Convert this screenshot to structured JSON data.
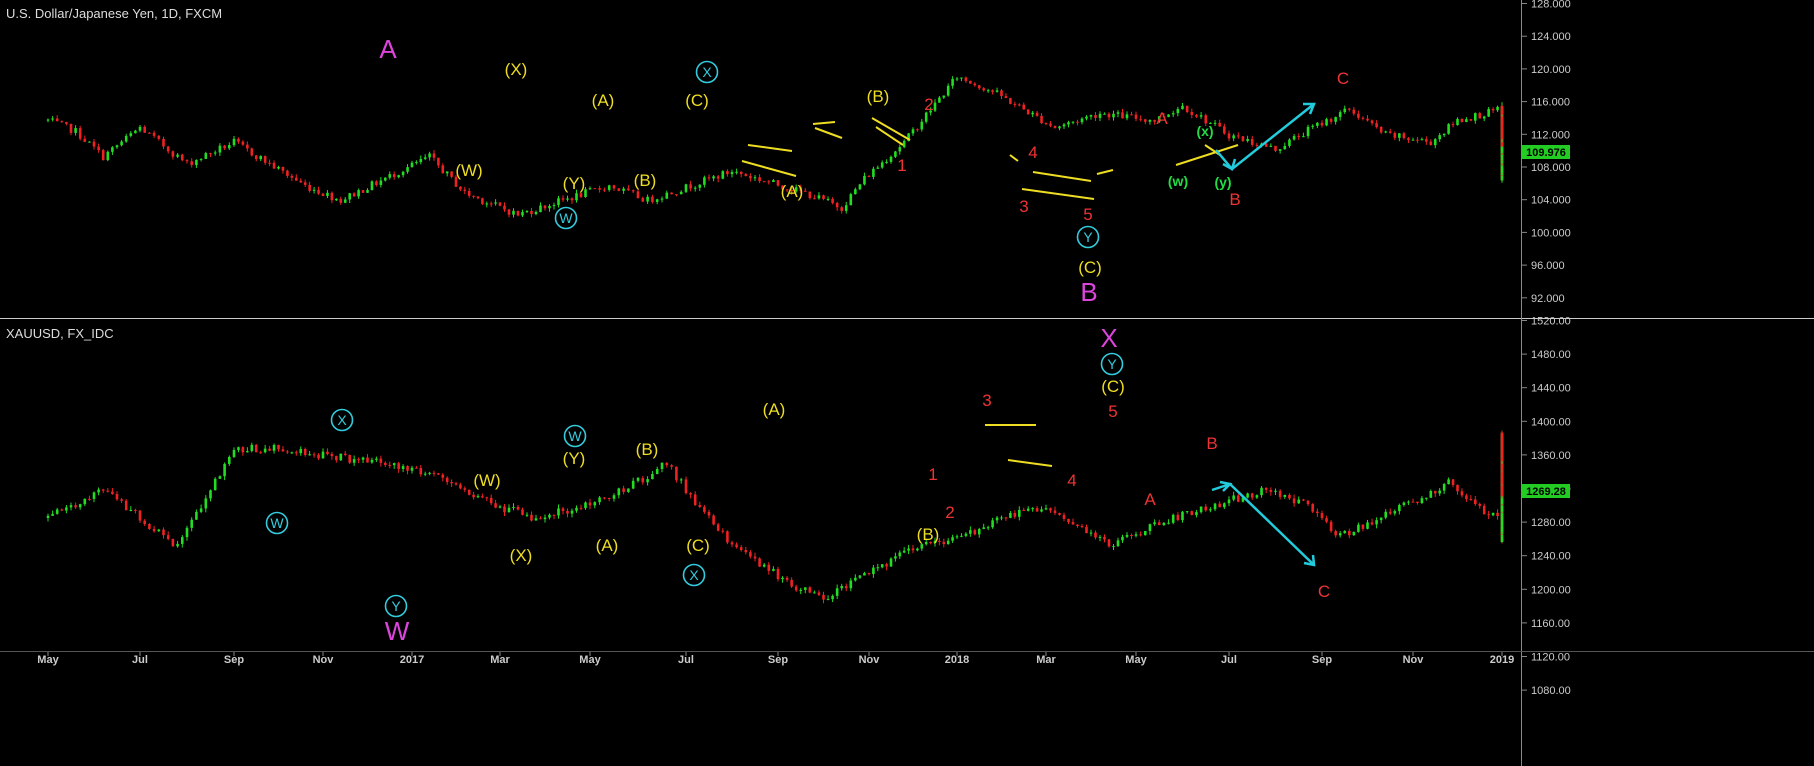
{
  "chart_data": [
    {
      "type": "candlestick",
      "symbol": "U.S. Dollar/Japanese Yen, 1D, FXCM",
      "y_ticks": [
        "128.000",
        "124.000",
        "120.000",
        "116.000",
        "112.000",
        "108.000",
        "104.000",
        "100.000",
        "96.000",
        "92.000"
      ],
      "ylim": [
        88,
        129
      ],
      "last_price": "109.976",
      "colors": {
        "up": "#22dd22",
        "down": "#ee2222",
        "price_tag": "#22cc22"
      },
      "price_path": [
        [
          0,
          113
        ],
        [
          0.3,
          111.5
        ],
        [
          0.6,
          108
        ],
        [
          1.0,
          112
        ],
        [
          1.5,
          107
        ],
        [
          2.0,
          110
        ],
        [
          2.8,
          104
        ],
        [
          3.2,
          102
        ],
        [
          4.2,
          108
        ],
        [
          4.6,
          103
        ],
        [
          5.2,
          100
        ],
        [
          6.2,
          104
        ],
        [
          6.6,
          102
        ],
        [
          7.5,
          106
        ],
        [
          8.3,
          103
        ],
        [
          8.7,
          101
        ],
        [
          8.95,
          105
        ],
        [
          9.4,
          110
        ],
        [
          10.0,
          119
        ],
        [
          10.4,
          117
        ],
        [
          11.1,
          112
        ],
        [
          11.6,
          114
        ],
        [
          12.2,
          113
        ],
        [
          12.5,
          115
        ],
        [
          13.0,
          111
        ],
        [
          13.5,
          109
        ],
        [
          13.9,
          112
        ],
        [
          14.3,
          114.5
        ],
        [
          14.7,
          111
        ],
        [
          15.2,
          110
        ],
        [
          15.5,
          113
        ],
        [
          16.0,
          114.5
        ],
        [
          16.5,
          112
        ],
        [
          17.0,
          111
        ],
        [
          17.4,
          109
        ],
        [
          17.8,
          108
        ],
        [
          18.5,
          111
        ],
        [
          19.0,
          113
        ],
        [
          19.4,
          113
        ],
        [
          20.0,
          114.5
        ],
        [
          20.5,
          112
        ],
        [
          20.9,
          111
        ],
        [
          21.2,
          113
        ],
        [
          21.7,
          113.5
        ],
        [
          22.1,
          112
        ],
        [
          22.4,
          110
        ],
        [
          22.8,
          107
        ],
        [
          23.2,
          105
        ],
        [
          23.7,
          106
        ],
        [
          24.3,
          106
        ],
        [
          24.6,
          108
        ],
        [
          25.2,
          109
        ],
        [
          25.6,
          110.5
        ],
        [
          26.0,
          109
        ],
        [
          26.5,
          109
        ],
        [
          27.0,
          110
        ]
      ]
    },
    {
      "type": "candlestick",
      "symbol": "XAUUSD, FX_IDC",
      "y_ticks": [
        "1520.00",
        "1480.00",
        "1440.00",
        "1400.00",
        "1360.00",
        "1320.00",
        "1280.00",
        "1240.00",
        "1200.00",
        "1160.00",
        "1120.00",
        "1080.00"
      ],
      "ylim": [
        1050,
        1522
      ],
      "last_price": "1269.28",
      "colors": {
        "up": "#22dd22",
        "down": "#ee2222",
        "price_tag": "#22cc22"
      },
      "price_path": [
        [
          0,
          1240
        ],
        [
          0.6,
          1280
        ],
        [
          1.1,
          1230
        ],
        [
          1.4,
          1200
        ],
        [
          2.0,
          1340
        ],
        [
          2.5,
          1340
        ],
        [
          3.0,
          1330
        ],
        [
          3.6,
          1320
        ],
        [
          4.3,
          1300
        ],
        [
          4.9,
          1260
        ],
        [
          5.4,
          1240
        ],
        [
          6.0,
          1260
        ],
        [
          6.6,
          1300
        ],
        [
          6.8,
          1320
        ],
        [
          7.0,
          1280
        ],
        [
          7.5,
          1200
        ],
        [
          8.2,
          1140
        ],
        [
          8.5,
          1125
        ],
        [
          9.1,
          1170
        ],
        [
          9.6,
          1200
        ],
        [
          10.2,
          1220
        ],
        [
          10.7,
          1250
        ],
        [
          11.1,
          1250
        ],
        [
          11.5,
          1220
        ],
        [
          11.7,
          1200
        ],
        [
          12.2,
          1230
        ],
        [
          12.6,
          1250
        ],
        [
          13.0,
          1265
        ],
        [
          13.4,
          1280
        ],
        [
          13.8,
          1260
        ],
        [
          14.2,
          1215
        ],
        [
          14.8,
          1250
        ],
        [
          15.4,
          1290
        ],
        [
          15.8,
          1250
        ],
        [
          16.2,
          1225
        ],
        [
          16.6,
          1210
        ],
        [
          17.2,
          1240
        ],
        [
          18.0,
          1280
        ],
        [
          18.5,
          1320
        ],
        [
          18.8,
          1350
        ],
        [
          19.2,
          1320
        ],
        [
          19.7,
          1290
        ],
        [
          20.1,
          1280
        ],
        [
          20.6,
          1285
        ],
        [
          21.1,
          1290
        ],
        [
          21.7,
          1280
        ],
        [
          22.0,
          1240
        ],
        [
          22.4,
          1255
        ],
        [
          22.8,
          1290
        ],
        [
          23.2,
          1325
        ],
        [
          23.5,
          1355
        ],
        [
          23.9,
          1340
        ],
        [
          24.3,
          1320
        ],
        [
          24.8,
          1300
        ],
        [
          25.2,
          1340
        ],
        [
          25.6,
          1360
        ],
        [
          26.0,
          1340
        ],
        [
          26.4,
          1320
        ],
        [
          26.9,
          1305
        ],
        [
          27.5,
          1300
        ],
        [
          27.9,
          1300
        ],
        [
          28.2,
          1295
        ],
        [
          28.6,
          1270
        ]
      ]
    }
  ],
  "x_ticks": [
    "May",
    "Jul",
    "Sep",
    "Nov",
    "2017",
    "Mar",
    "May",
    "Jul",
    "Sep",
    "Nov",
    "2018",
    "Mar",
    "May",
    "Jul",
    "Sep",
    "Nov",
    "2019"
  ],
  "labels": {
    "usdjpy": [
      {
        "t": "A",
        "c": "#dd44dd",
        "cls": "big",
        "x": 388,
        "y": 58
      },
      {
        "t": "(X)",
        "c": "#eedd22",
        "x": 516,
        "y": 75
      },
      {
        "t": "X",
        "c": "#33ccdd",
        "cls": "circ",
        "x": 707,
        "y": 77,
        "circle": true
      },
      {
        "t": "(A)",
        "c": "#eedd22",
        "x": 603,
        "y": 106
      },
      {
        "t": "(C)",
        "c": "#eedd22",
        "x": 697,
        "y": 106
      },
      {
        "t": "(B)",
        "c": "#eedd22",
        "x": 878,
        "y": 102
      },
      {
        "t": "2",
        "c": "#ee3333",
        "x": 929,
        "y": 110
      },
      {
        "t": "A",
        "c": "#ee3333",
        "x": 1162,
        "y": 124
      },
      {
        "t": "(x)",
        "c": "#22dd44",
        "cls": "small",
        "x": 1205,
        "y": 136
      },
      {
        "t": "C",
        "c": "#ee3333",
        "x": 1343,
        "y": 84
      },
      {
        "t": "(W)",
        "c": "#eedd22",
        "x": 469,
        "y": 176
      },
      {
        "t": "(Y)",
        "c": "#eedd22",
        "x": 574,
        "y": 189
      },
      {
        "t": "(B)",
        "c": "#eedd22",
        "x": 645,
        "y": 186
      },
      {
        "t": "(A)",
        "c": "#eedd22",
        "x": 792,
        "y": 197
      },
      {
        "t": "1",
        "c": "#ee3333",
        "x": 902,
        "y": 171
      },
      {
        "t": "4",
        "c": "#ee3333",
        "x": 1033,
        "y": 158
      },
      {
        "t": "(w)",
        "c": "#22dd44",
        "cls": "small",
        "x": 1178,
        "y": 186
      },
      {
        "t": "(y)",
        "c": "#22dd44",
        "cls": "small",
        "x": 1223,
        "y": 187
      },
      {
        "t": "B",
        "c": "#ee3333",
        "x": 1235,
        "y": 205
      },
      {
        "t": "W",
        "c": "#33ccdd",
        "cls": "circ",
        "x": 566,
        "y": 223,
        "circle": true
      },
      {
        "t": "3",
        "c": "#ee3333",
        "x": 1024,
        "y": 212
      },
      {
        "t": "5",
        "c": "#ee3333",
        "x": 1088,
        "y": 220
      },
      {
        "t": "Y",
        "c": "#33ccdd",
        "cls": "circ",
        "x": 1088,
        "y": 242,
        "circle": true
      },
      {
        "t": "(C)",
        "c": "#eedd22",
        "x": 1090,
        "y": 273
      },
      {
        "t": "B",
        "c": "#dd44dd",
        "cls": "big",
        "x": 1089,
        "y": 301
      }
    ],
    "xauusd": [
      {
        "t": "X",
        "c": "#dd44dd",
        "cls": "big",
        "x": 1109,
        "y": 347
      },
      {
        "t": "Y",
        "c": "#33ccdd",
        "cls": "circ",
        "x": 1112,
        "y": 369,
        "circle": true
      },
      {
        "t": "(C)",
        "c": "#eedd22",
        "x": 1113,
        "y": 392
      },
      {
        "t": "3",
        "c": "#ee3333",
        "x": 987,
        "y": 406
      },
      {
        "t": "5",
        "c": "#ee3333",
        "x": 1113,
        "y": 417
      },
      {
        "t": "(A)",
        "c": "#eedd22",
        "x": 774,
        "y": 415
      },
      {
        "t": "X",
        "c": "#33ccdd",
        "cls": "circ",
        "x": 342,
        "y": 425,
        "circle": true
      },
      {
        "t": "W",
        "c": "#33ccdd",
        "cls": "circ",
        "x": 575,
        "y": 441,
        "circle": true
      },
      {
        "t": "(Y)",
        "c": "#eedd22",
        "x": 574,
        "y": 464
      },
      {
        "t": "(B)",
        "c": "#eedd22",
        "x": 647,
        "y": 455
      },
      {
        "t": "B",
        "c": "#ee3333",
        "x": 1212,
        "y": 449
      },
      {
        "t": "1",
        "c": "#ee3333",
        "x": 933,
        "y": 480
      },
      {
        "t": "(W)",
        "c": "#eedd22",
        "x": 487,
        "y": 486
      },
      {
        "t": "4",
        "c": "#ee3333",
        "x": 1072,
        "y": 486
      },
      {
        "t": "A",
        "c": "#ee3333",
        "x": 1150,
        "y": 505
      },
      {
        "t": "2",
        "c": "#ee3333",
        "x": 950,
        "y": 518
      },
      {
        "t": "W",
        "c": "#33ccdd",
        "cls": "circ",
        "x": 277,
        "y": 528,
        "circle": true
      },
      {
        "t": "(B)",
        "c": "#eedd22",
        "x": 928,
        "y": 540
      },
      {
        "t": "(A)",
        "c": "#eedd22",
        "x": 607,
        "y": 551
      },
      {
        "t": "(X)",
        "c": "#eedd22",
        "x": 521,
        "y": 561
      },
      {
        "t": "(C)",
        "c": "#eedd22",
        "x": 698,
        "y": 551
      },
      {
        "t": "X",
        "c": "#33ccdd",
        "cls": "circ",
        "x": 694,
        "y": 580,
        "circle": true
      },
      {
        "t": "Y",
        "c": "#33ccdd",
        "cls": "circ",
        "x": 396,
        "y": 611,
        "circle": true
      },
      {
        "t": "C",
        "c": "#ee3333",
        "x": 1324,
        "y": 597
      },
      {
        "t": "W",
        "c": "#dd44dd",
        "cls": "big",
        "x": 397,
        "y": 640
      }
    ]
  }
}
